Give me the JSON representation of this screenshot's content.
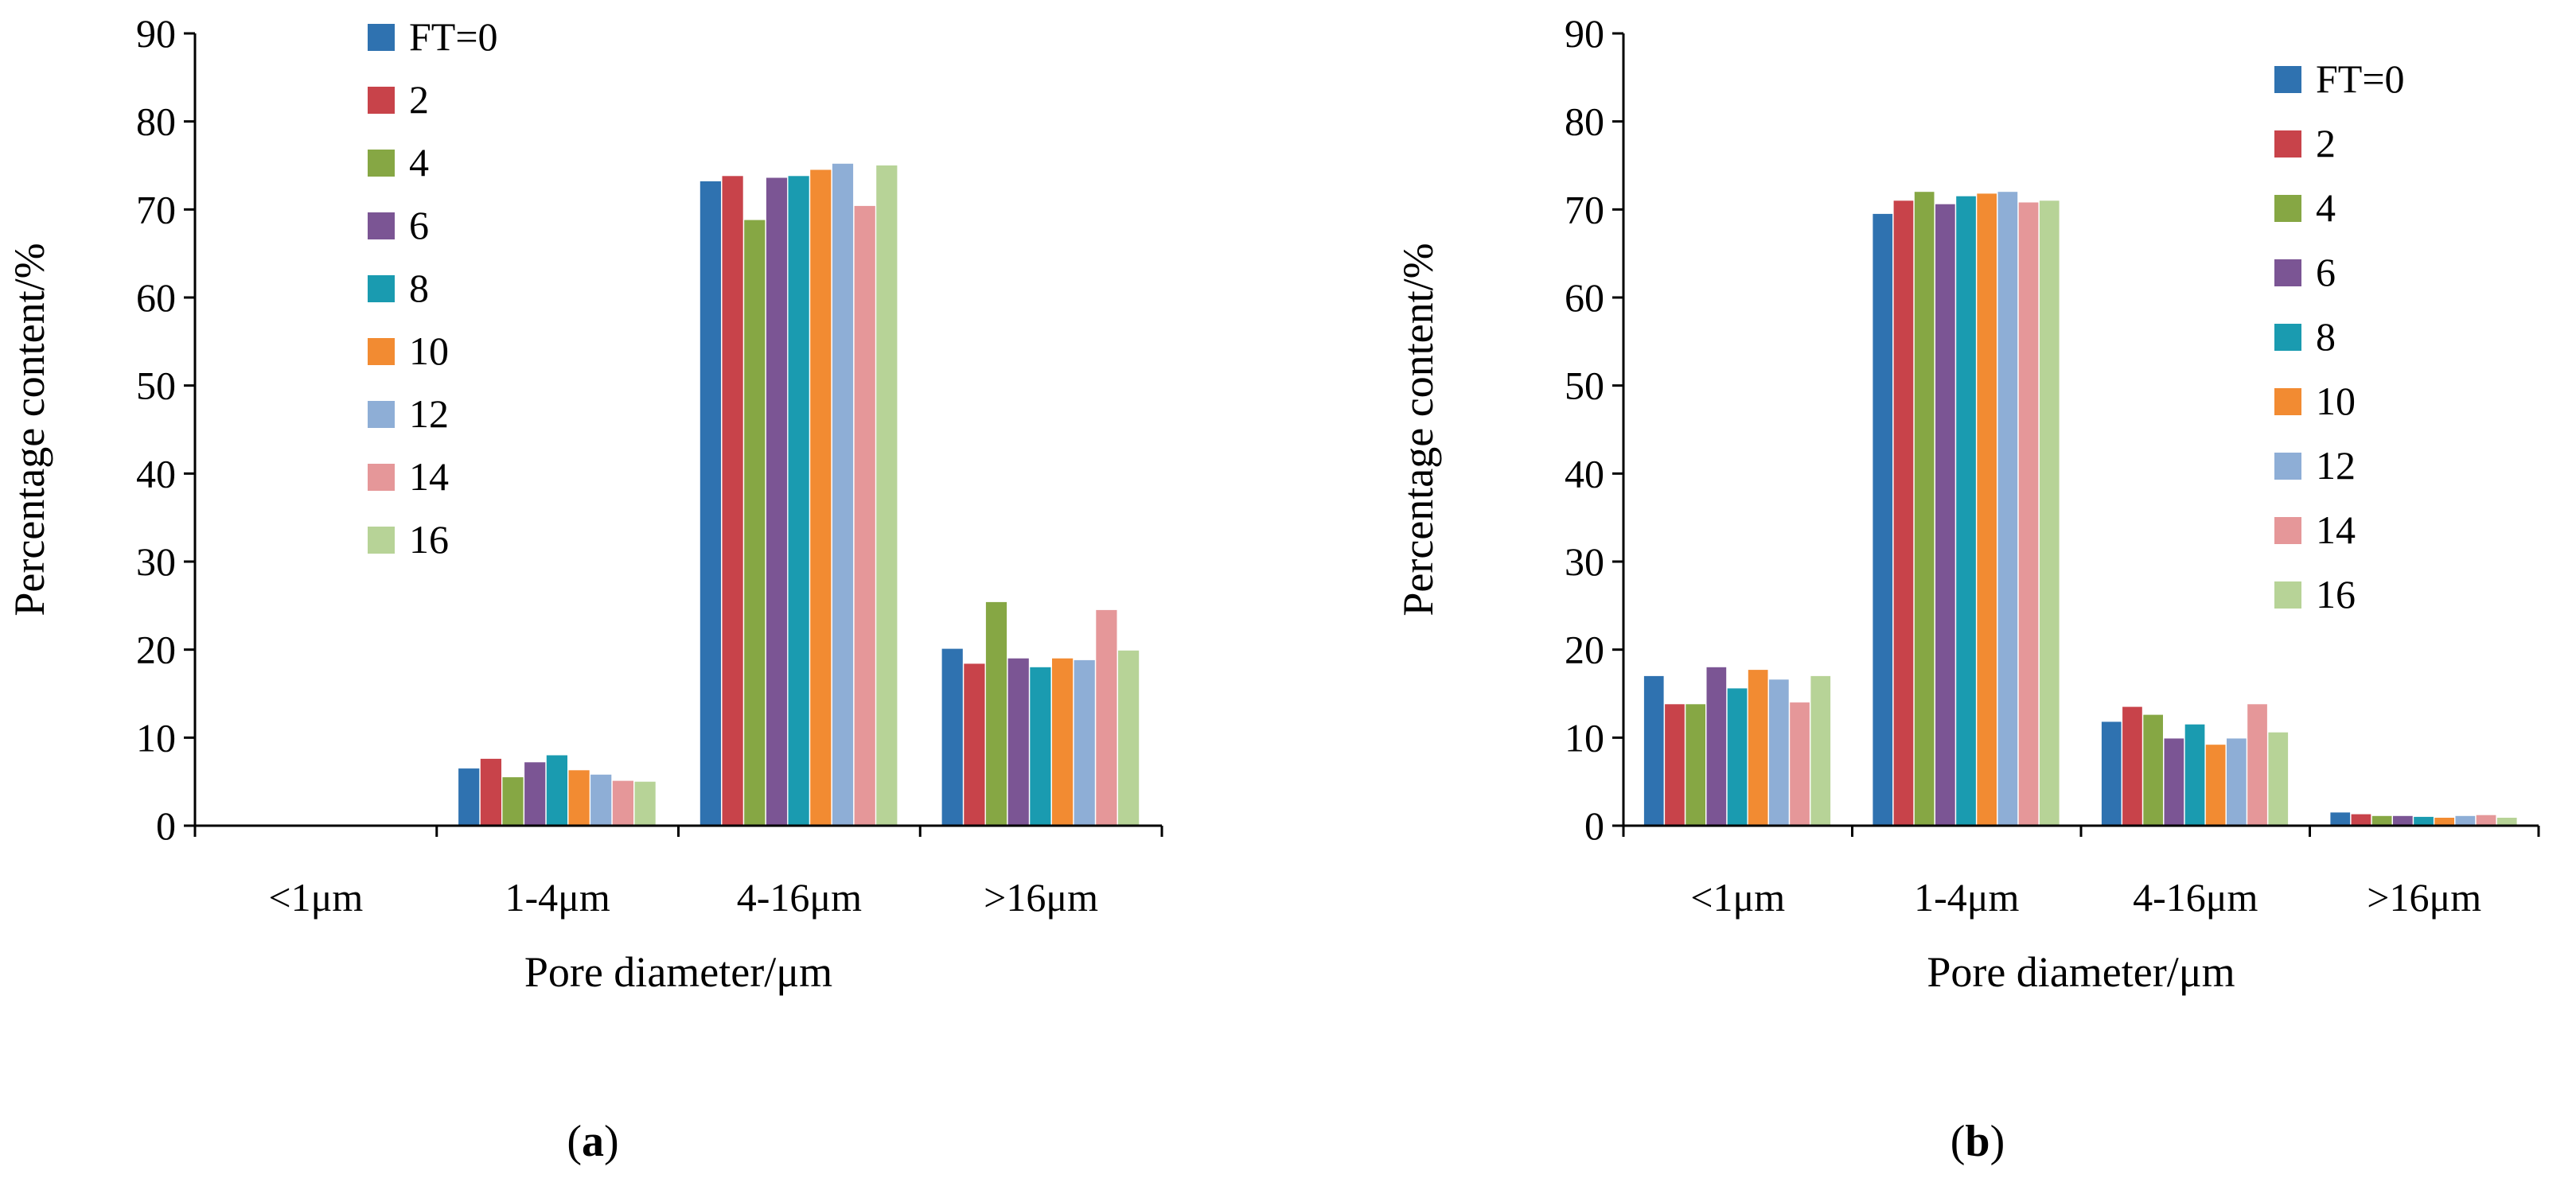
{
  "chart_data": [
    {
      "panel": "a",
      "caption_open": "(",
      "caption_letter": "a",
      "caption_close": ")",
      "type": "bar",
      "title": "",
      "xlabel": "Pore diameter/μm",
      "ylabel": "Percentage content/%",
      "ylim": [
        0,
        90
      ],
      "yticks": [
        0,
        10,
        20,
        30,
        40,
        50,
        60,
        70,
        80,
        90
      ],
      "yticklabels": [
        "0",
        "10",
        "20",
        "30",
        "40",
        "50",
        "60",
        "70",
        "80",
        "90"
      ],
      "grid": false,
      "legend_position": "top-left",
      "categories": [
        "<1μm",
        "1-4μm",
        "4-16μm",
        ">16μm"
      ],
      "series": [
        {
          "name": "FT=0",
          "color": "#2f72b0",
          "values": [
            0,
            6.5,
            73.2,
            20.1
          ]
        },
        {
          "name": "2",
          "color": "#c8434a",
          "values": [
            0,
            7.6,
            73.8,
            18.4
          ]
        },
        {
          "name": "4",
          "color": "#86a744",
          "values": [
            0,
            5.5,
            68.8,
            25.4
          ]
        },
        {
          "name": "6",
          "color": "#7b5594",
          "values": [
            0,
            7.2,
            73.6,
            19.0
          ]
        },
        {
          "name": "8",
          "color": "#1a9bb0",
          "values": [
            0,
            8.0,
            73.8,
            18.0
          ]
        },
        {
          "name": "10",
          "color": "#f28b32",
          "values": [
            0,
            6.3,
            74.5,
            19.0
          ]
        },
        {
          "name": "12",
          "color": "#8eaed6",
          "values": [
            0,
            5.8,
            75.2,
            18.8
          ]
        },
        {
          "name": "14",
          "color": "#e59799",
          "values": [
            0,
            5.1,
            70.4,
            24.5
          ]
        },
        {
          "name": "16",
          "color": "#b7d397",
          "values": [
            0,
            5.0,
            75.0,
            19.9
          ]
        }
      ]
    },
    {
      "panel": "b",
      "caption_open": "(",
      "caption_letter": "b",
      "caption_close": ")",
      "type": "bar",
      "title": "",
      "xlabel": "Pore diameter/μm",
      "ylabel": "Percentage content/%",
      "ylim": [
        0,
        90
      ],
      "yticks": [
        0,
        10,
        20,
        30,
        40,
        50,
        60,
        70,
        80,
        90
      ],
      "yticklabels": [
        "0",
        "10",
        "20",
        "30",
        "40",
        "50",
        "60",
        "70",
        "80",
        "90"
      ],
      "grid": false,
      "legend_position": "top-right",
      "categories": [
        "<1μm",
        "1-4μm",
        "4-16μm",
        ">16μm"
      ],
      "series": [
        {
          "name": "FT=0",
          "color": "#2f72b0",
          "values": [
            17.0,
            69.5,
            11.8,
            1.5
          ]
        },
        {
          "name": "2",
          "color": "#c8434a",
          "values": [
            13.8,
            71.0,
            13.5,
            1.3
          ]
        },
        {
          "name": "4",
          "color": "#86a744",
          "values": [
            13.8,
            72.0,
            12.6,
            1.1
          ]
        },
        {
          "name": "6",
          "color": "#7b5594",
          "values": [
            18.0,
            70.6,
            9.9,
            1.1
          ]
        },
        {
          "name": "8",
          "color": "#1a9bb0",
          "values": [
            15.6,
            71.5,
            11.5,
            1.0
          ]
        },
        {
          "name": "10",
          "color": "#f28b32",
          "values": [
            17.7,
            71.8,
            9.2,
            0.9
          ]
        },
        {
          "name": "12",
          "color": "#8eaed6",
          "values": [
            16.6,
            72.0,
            9.9,
            1.1
          ]
        },
        {
          "name": "14",
          "color": "#e59799",
          "values": [
            14.0,
            70.8,
            13.8,
            1.2
          ]
        },
        {
          "name": "16",
          "color": "#b7d397",
          "values": [
            17.0,
            71.0,
            10.6,
            0.9
          ]
        }
      ]
    }
  ]
}
